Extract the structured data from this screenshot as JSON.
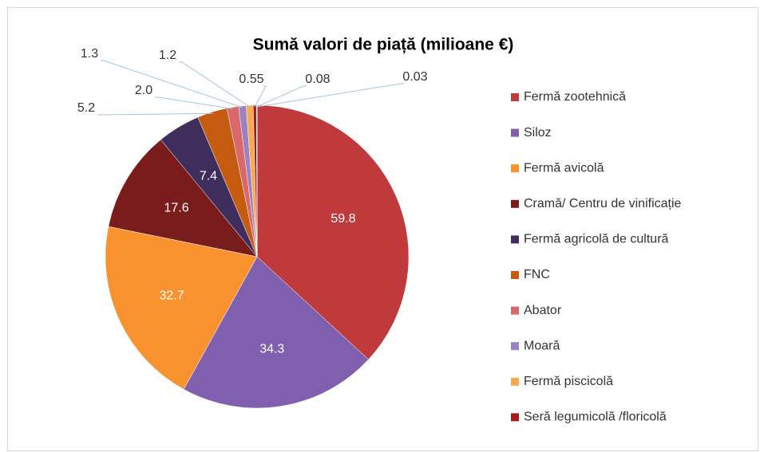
{
  "chart_data": {
    "type": "pie",
    "title": "Sumă valori de piață (milioane €)",
    "categories": [
      "Fermă zootehnică",
      "Siloz",
      "Fermă avicolă",
      "Cramă/ Centru de vinificație",
      "Fermă agricolă de cultură",
      "FNC",
      "Abator",
      "Moară",
      "Fermă piscicolă",
      "Seră legumicolă /floricolă",
      null,
      null
    ],
    "values": [
      59.8,
      34.3,
      32.7,
      17.6,
      7.4,
      5.2,
      2.0,
      1.3,
      1.2,
      0.55,
      0.08,
      0.03
    ],
    "value_labels": [
      "59.8",
      "34.3",
      "32.7",
      "17.6",
      "7.4",
      "5.2",
      "2.0",
      "1.3",
      "1.2",
      "0.55",
      "0.08",
      "0.03"
    ],
    "colors": [
      "#c0393b",
      "#7f5fae",
      "#f7922f",
      "#7b1c1c",
      "#3f2d5e",
      "#c55a11",
      "#d9686a",
      "#9b83c3",
      "#f9a94f",
      "#a31b1b",
      "#5a3c8a",
      "#e0803a"
    ],
    "legend": "right"
  }
}
